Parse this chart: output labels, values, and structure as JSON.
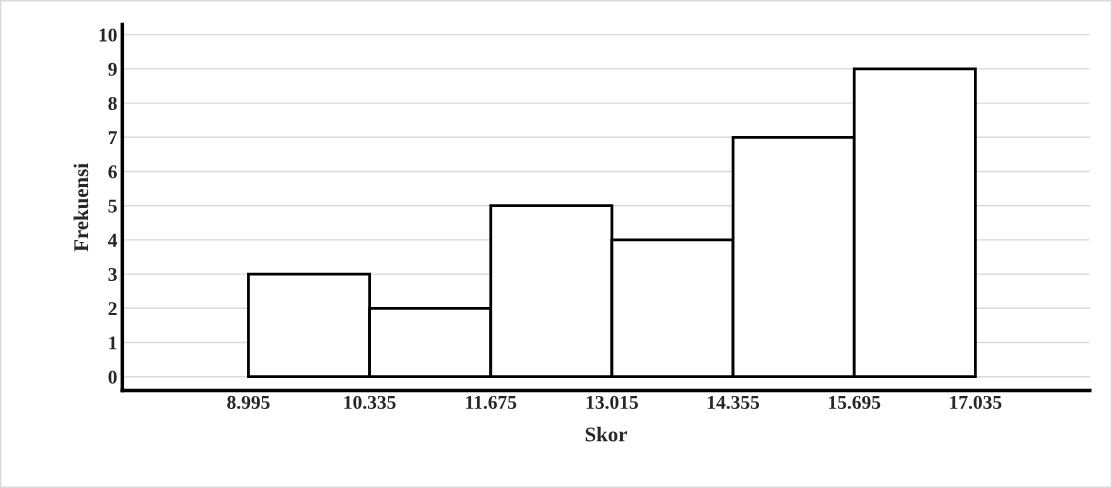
{
  "chart_data": {
    "type": "histogram",
    "xlabel": "Skor",
    "ylabel": "Frekuensi",
    "bins": [
      8.995,
      10.335,
      11.675,
      13.015,
      14.355,
      15.695,
      17.035
    ],
    "values": [
      3,
      2,
      5,
      4,
      7,
      9
    ],
    "color": "#ffffff",
    "xlim": [
      7.6,
      18.3
    ],
    "ylim": [
      -0.4,
      10.3
    ],
    "xticks": [
      8.995,
      10.335,
      11.675,
      13.015,
      14.355,
      15.695,
      17.035
    ],
    "yticks": [
      0,
      1,
      2,
      3,
      4,
      5,
      6,
      7,
      8,
      9,
      10
    ],
    "grid": "y"
  }
}
